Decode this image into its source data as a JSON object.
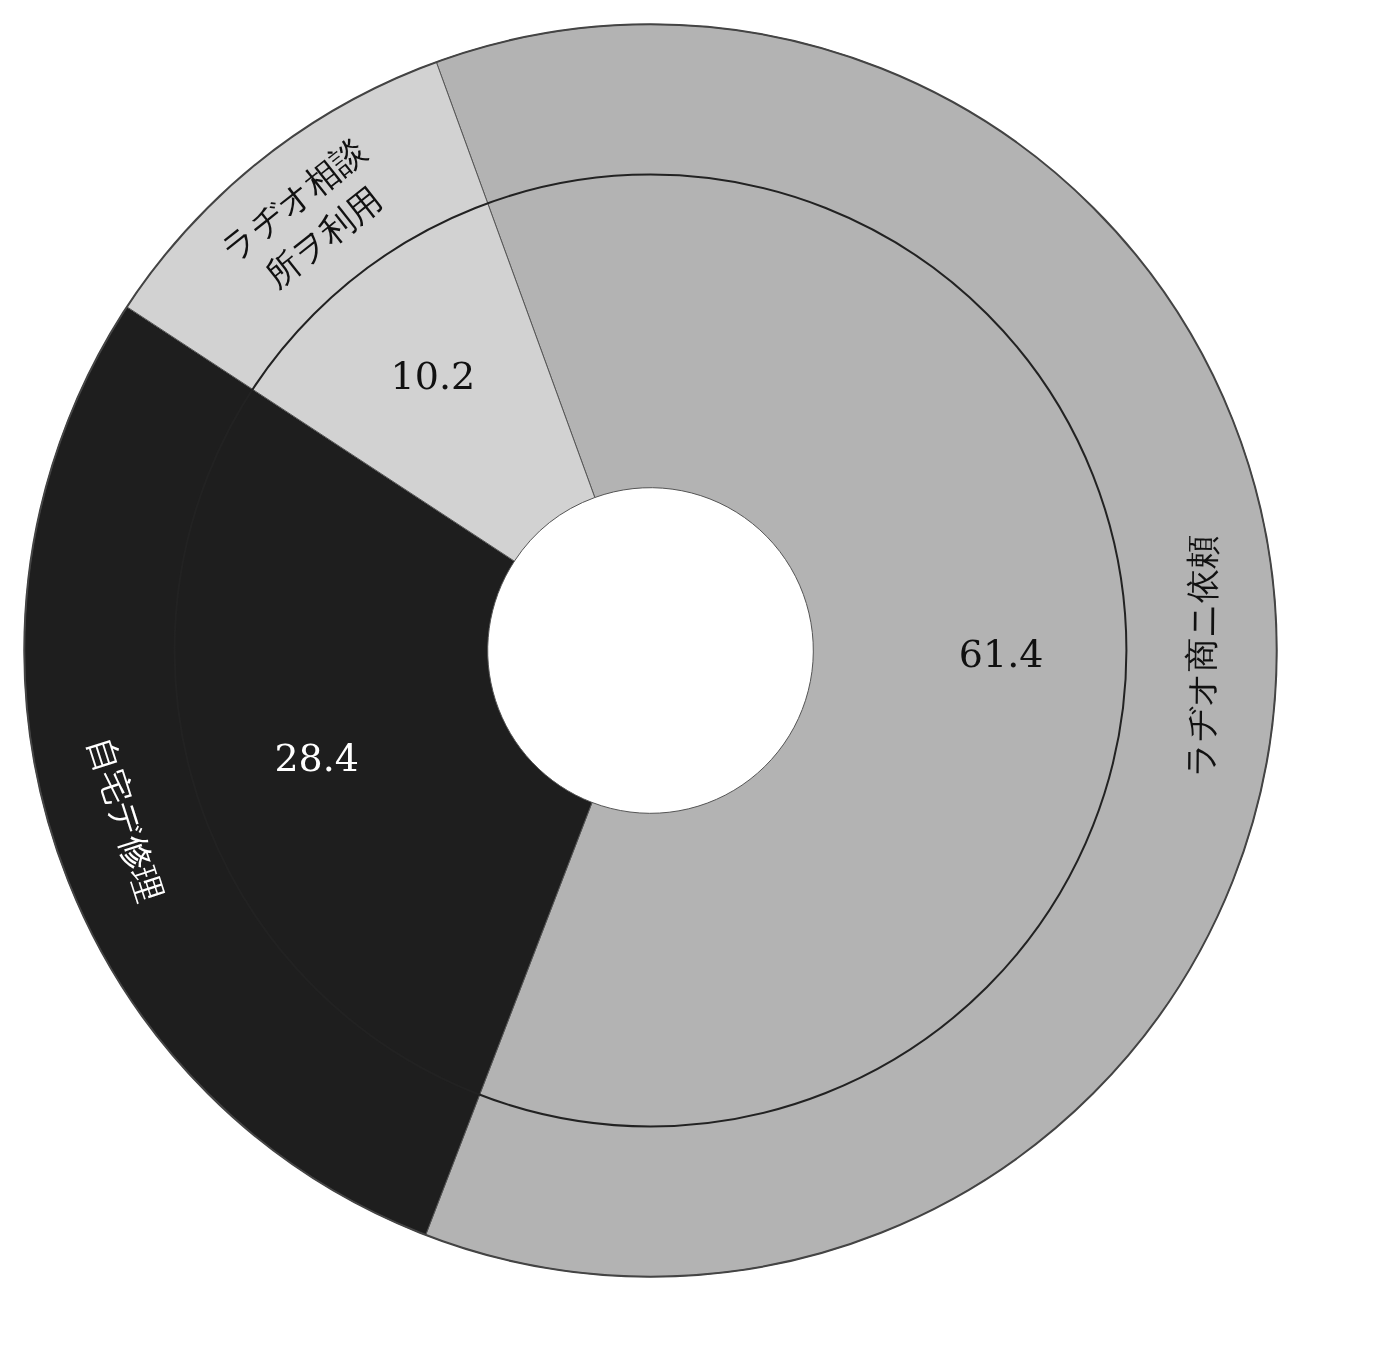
{
  "chart_data": {
    "type": "donut",
    "categories": [
      "ラヂオ商ニ依頼",
      "自宅デ修理",
      "ラヂオ相談所ヲ利用"
    ],
    "values": [
      61.4,
      28.4,
      10.2
    ],
    "colors": [
      "#b3b3b3",
      "#1e1e1e",
      "#d2d2d2"
    ],
    "data_labels": true
  }
}
